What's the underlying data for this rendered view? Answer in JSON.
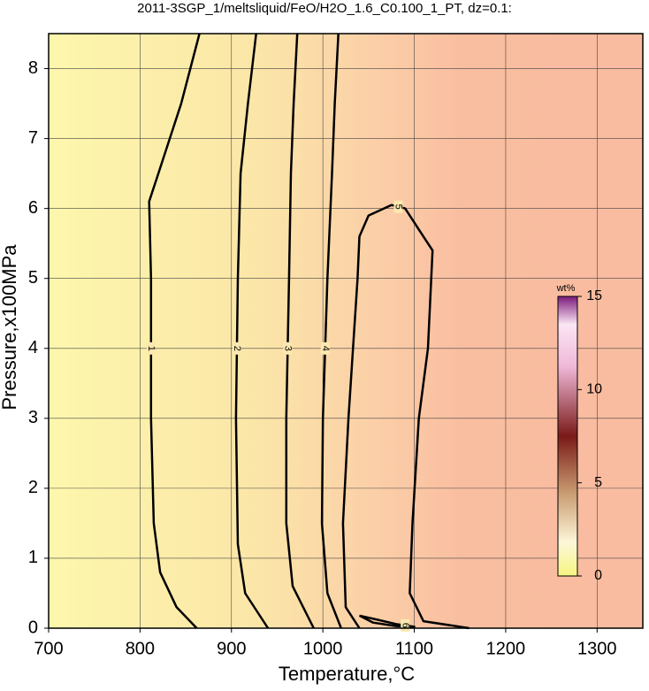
{
  "chart_data": {
    "type": "contour",
    "title": "2011-3SGP_1/meltsliquid/FeO/H2O_1.6_C0.100_1_PT, dz=0.1:",
    "x_label": "Temperature,°C",
    "y_label": "Pressure,x100MPa",
    "xlim": [
      700,
      1350
    ],
    "xticks": [
      700,
      800,
      900,
      1000,
      1100,
      1200,
      1300
    ],
    "ylim": [
      0,
      8.5
    ],
    "yticks": [
      0,
      1,
      2,
      3,
      4,
      5,
      6,
      7,
      8
    ],
    "grid": true,
    "contours": [
      {
        "level": 1,
        "x": [
          862,
          840,
          822,
          815,
          812,
          812,
          810,
          820,
          845,
          865
        ],
        "y": [
          0,
          0.3,
          0.8,
          1.5,
          3,
          5,
          6.1,
          6.5,
          7.5,
          8.5
        ]
      },
      {
        "level": 2,
        "x": [
          940,
          915,
          907,
          905,
          907,
          910,
          918,
          927
        ],
        "y": [
          0,
          0.5,
          1.2,
          3,
          5,
          6.5,
          7.5,
          8.5
        ]
      },
      {
        "level": 3,
        "x": [
          990,
          967,
          960,
          960,
          963,
          965,
          968,
          972
        ],
        "y": [
          0,
          0.6,
          1.5,
          3,
          5,
          6.5,
          7.5,
          8.5
        ]
      },
      {
        "level": 4,
        "x": [
          1020,
          1005,
          999,
          1000,
          1005,
          1010,
          1013,
          1017
        ],
        "y": [
          0,
          0.5,
          1.5,
          3,
          5,
          6.5,
          7.5,
          8.5
        ]
      },
      {
        "level": 5,
        "x": [
          1040,
          1025,
          1022,
          1028,
          1038,
          1040,
          1050,
          1075,
          1090,
          1105,
          1120,
          1115,
          1105,
          1098,
          1095,
          1110,
          1160
        ],
        "y": [
          0,
          0.3,
          1.5,
          3,
          5,
          5.6,
          5.9,
          6.05,
          6.0,
          5.7,
          5.4,
          4,
          3,
          1.5,
          0.5,
          0.1,
          0
        ]
      },
      {
        "level": 6,
        "x": [
          1040,
          1060,
          1080,
          1100,
          1080,
          1055,
          1040
        ],
        "y": [
          0.18,
          0.12,
          0.06,
          0.02,
          0.03,
          0.08,
          0.18
        ]
      }
    ],
    "colorbar": {
      "label": "wt%",
      "lim": [
        0,
        15
      ],
      "ticks": [
        0,
        5,
        10,
        15
      ]
    }
  }
}
